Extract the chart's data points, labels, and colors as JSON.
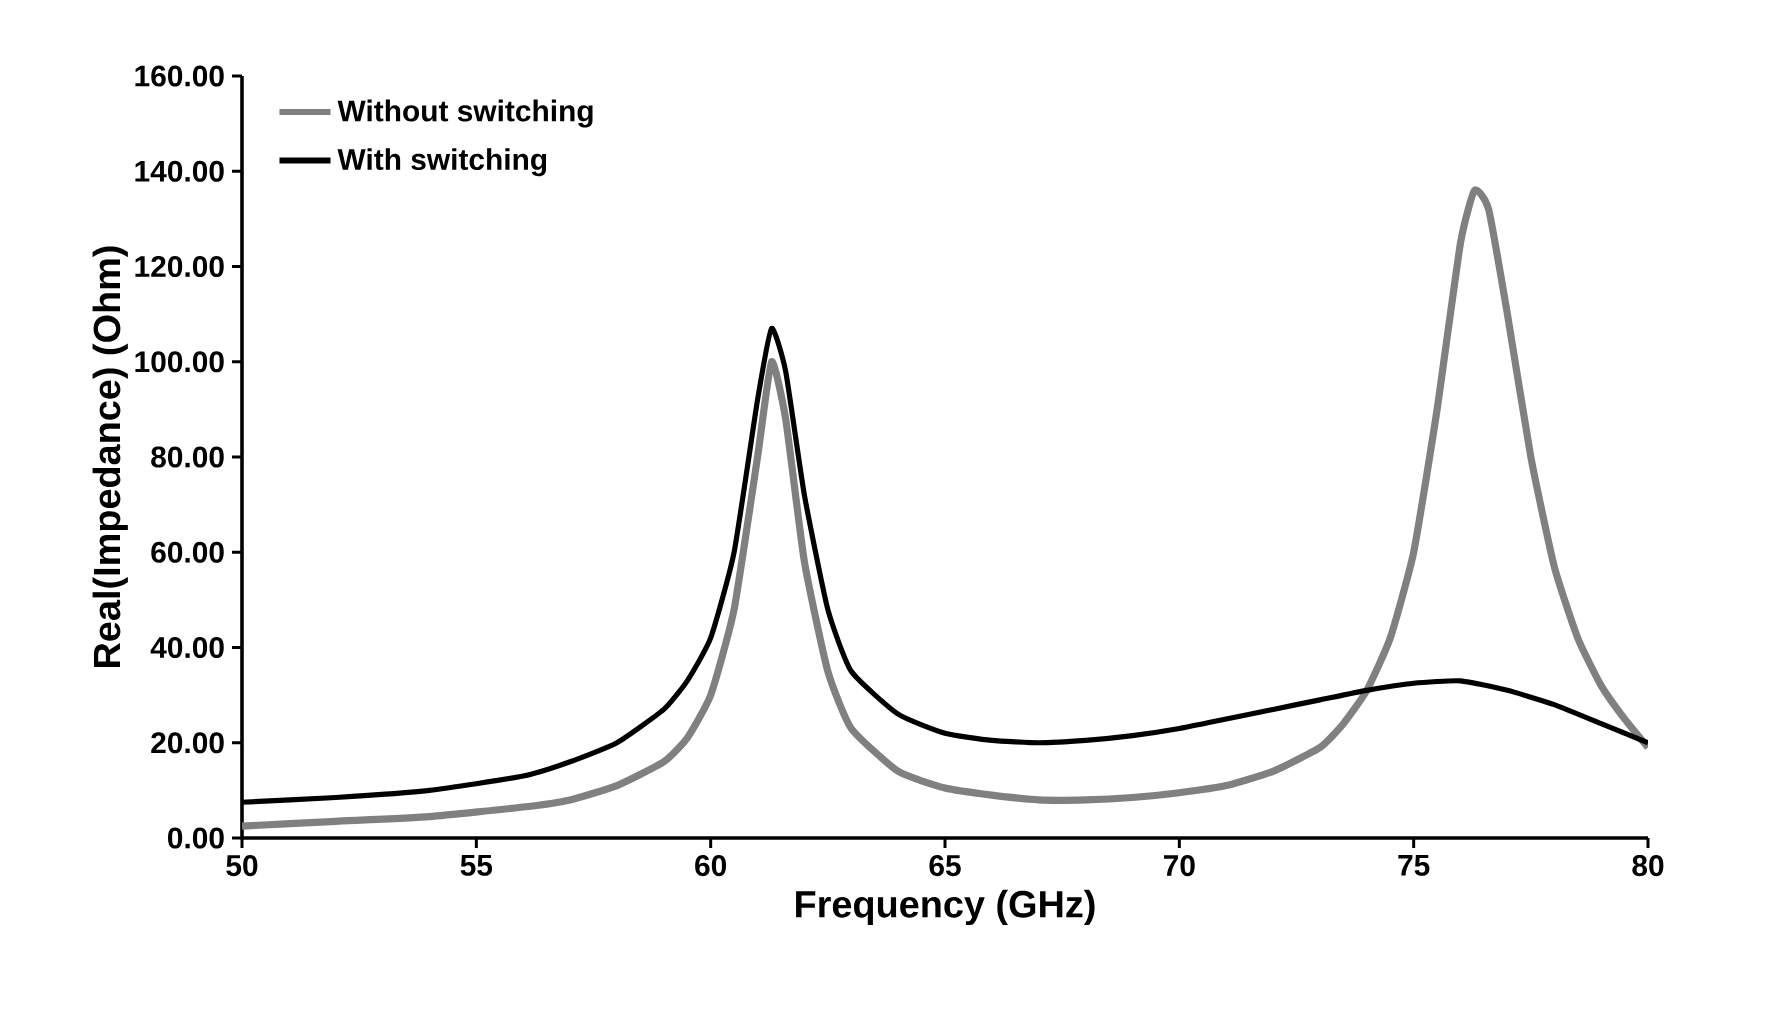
{
  "chart_data": {
    "type": "line",
    "xlabel": "Frequency (GHz)",
    "ylabel": "Real(Impedance) (Ohm)",
    "xlim": [
      50,
      80
    ],
    "xticks": [
      50,
      55,
      60,
      65,
      70,
      75,
      80
    ],
    "ylim": [
      0,
      160
    ],
    "yticks": [
      {
        "value": 0,
        "label": "0.00"
      },
      {
        "value": 20,
        "label": "20.00"
      },
      {
        "value": 40,
        "label": "40.00"
      },
      {
        "value": 60,
        "label": "60.00"
      },
      {
        "value": 80,
        "label": "80.00"
      },
      {
        "value": 100,
        "label": "100.00"
      },
      {
        "value": 120,
        "label": "120.00"
      },
      {
        "value": 140,
        "label": "140.00"
      },
      {
        "value": 160,
        "label": "160.00"
      }
    ],
    "grid": false,
    "legend": "top left",
    "marker": "none",
    "line_style": "solid",
    "series": [
      {
        "name": "Without switching",
        "color": "#808080",
        "x": [
          50,
          52,
          54,
          56,
          57,
          58,
          59,
          59.5,
          60,
          60.5,
          61,
          61.3,
          61.6,
          62,
          62.5,
          63,
          64,
          65,
          66,
          67,
          68,
          69,
          70,
          71,
          72,
          73,
          73.5,
          74,
          74.5,
          75,
          75.5,
          76,
          76.3,
          76.6,
          77,
          77.5,
          78,
          78.5,
          79,
          79.5,
          80
        ],
        "values": [
          2.5,
          3.5,
          4.5,
          6.5,
          8,
          11,
          16,
          21,
          30,
          48,
          80,
          100,
          88,
          58,
          35,
          23,
          14,
          10.5,
          9,
          8,
          8,
          8.5,
          9.5,
          11,
          14,
          19,
          24,
          31,
          42,
          60,
          90,
          125,
          136,
          132,
          110,
          80,
          57,
          42,
          32,
          25,
          19
        ]
      },
      {
        "name": "With switching",
        "color": "#000000",
        "x": [
          50,
          52,
          54,
          56,
          57,
          58,
          59,
          59.5,
          60,
          60.5,
          61,
          61.3,
          61.6,
          62,
          62.5,
          63,
          64,
          65,
          66,
          67,
          68,
          69,
          70,
          71,
          72,
          73,
          74,
          75,
          76,
          77,
          78,
          79,
          80
        ],
        "values": [
          7.5,
          8.5,
          10,
          13,
          16,
          20,
          27,
          33,
          42,
          60,
          92,
          107,
          98,
          72,
          48,
          35,
          26,
          22,
          20.5,
          20,
          20.5,
          21.5,
          23,
          25,
          27,
          29,
          31,
          32.5,
          33,
          31,
          28,
          24,
          20
        ]
      }
    ]
  }
}
